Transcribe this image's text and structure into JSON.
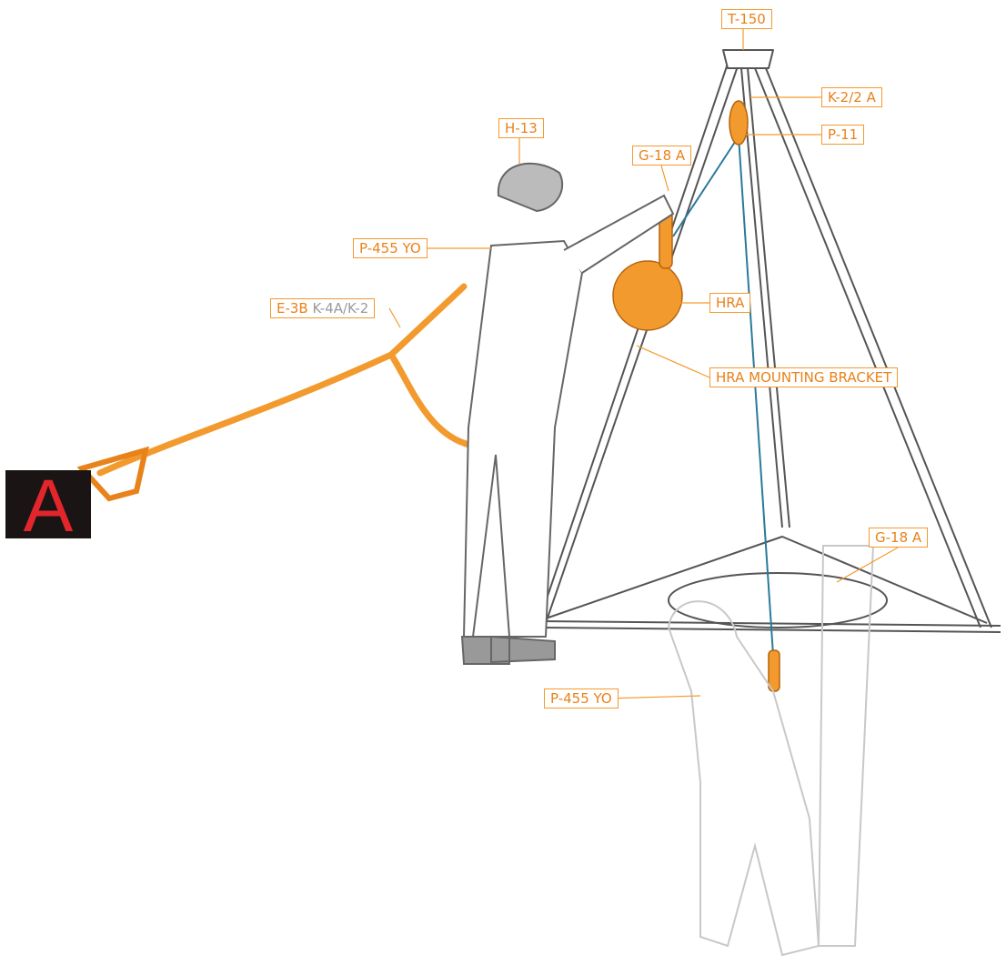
{
  "badge": "A",
  "labels": [
    {
      "text": "T-150"
    },
    {
      "text": "K-2/2 A"
    },
    {
      "text": "P-11"
    },
    {
      "text": "H-13"
    },
    {
      "text": "G-18 A"
    },
    {
      "text": "P-455 YO"
    },
    {
      "parts": [
        "E-3B",
        "K-4A/K-2"
      ]
    },
    {
      "text": "HRA"
    },
    {
      "text": "HRA MOUNTING BRACKET"
    },
    {
      "text": "G-18 A"
    },
    {
      "text": "P-455 YO"
    }
  ]
}
